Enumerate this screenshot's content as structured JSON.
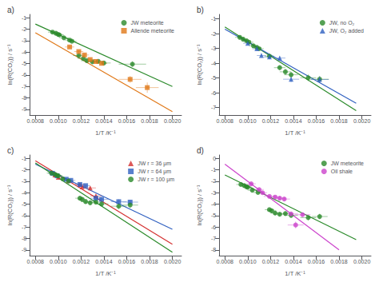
{
  "chart_data": [
    {
      "type": "scatter",
      "title": "a)",
      "xlabel": "1/T /K⁻¹",
      "ylabel": "ln(R(CO₂)) / s⁻¹",
      "xlim": [
        0.00075,
        0.00208
      ],
      "xticks": [
        0.0008,
        {
          "value": 0.001,
          "label": "0.0010"
        },
        0.0012,
        0.0014,
        0.0016,
        0.0018,
        {
          "value": 0.002,
          "label": "0.0020"
        }
      ],
      "ylim": [
        -9.5,
        -0.7
      ],
      "yticks": [
        -9,
        -8,
        -7,
        -6,
        -5,
        -4,
        -3,
        -2,
        -1
      ],
      "grid": false,
      "legend": "upper right",
      "series": [
        {
          "type": "scatter",
          "name": "JW meteorite",
          "color": "#2a8a2a",
          "marker": "circle",
          "x": [
            0.00095,
            0.00098,
            0.001,
            0.00101,
            0.00105,
            0.0011,
            0.00112,
            0.00118,
            0.00122,
            0.00125,
            0.0013,
            0.00135,
            0.0014,
            0.00165
          ],
          "values": [
            -2.25,
            -2.35,
            -2.45,
            -2.5,
            -2.75,
            -2.95,
            -3.05,
            -4.3,
            -4.55,
            -4.75,
            -4.85,
            -4.8,
            -4.95,
            -5.05
          ],
          "xerr": [
            4e-05,
            4e-05,
            4e-05,
            4e-05,
            4e-05,
            4e-05,
            4e-05,
            5e-05,
            5e-05,
            5e-05,
            5e-05,
            5e-05,
            6e-05,
            0.00012
          ],
          "yerr": [
            0.1,
            0.1,
            0.1,
            0.1,
            0.1,
            0.1,
            0.1,
            0.15,
            0.15,
            0.15,
            0.15,
            0.15,
            0.2,
            0.25
          ]
        },
        {
          "type": "scatter",
          "name": "Allende meteorite",
          "color": "#e07818",
          "marker": "square",
          "x": [
            0.0011,
            0.00118,
            0.00123,
            0.00128,
            0.00133,
            0.00138,
            0.00163,
            0.00178
          ],
          "values": [
            -3.55,
            -3.95,
            -4.25,
            -4.65,
            -4.82,
            -4.98,
            -6.38,
            -7.1
          ],
          "xerr": [
            4e-05,
            4e-05,
            4e-05,
            5e-05,
            5e-05,
            5e-05,
            0.0001,
            0.0001
          ],
          "yerr": [
            0.1,
            0.1,
            0.12,
            0.15,
            0.15,
            0.18,
            0.3,
            0.45
          ]
        },
        {
          "type": "line",
          "color": "#2a8a2a",
          "x": [
            0.0008,
            0.002
          ],
          "values": [
            -1.55,
            -7.0
          ]
        },
        {
          "type": "line",
          "color": "#e07818",
          "x": [
            0.0008,
            0.002
          ],
          "values": [
            -2.3,
            -9.2
          ]
        }
      ]
    },
    {
      "type": "scatter",
      "title": "b)",
      "xlabel": "1/T /K⁻¹",
      "ylabel": "ln(R(CO₂)) / s⁻¹",
      "xlim": [
        0.00075,
        0.00208
      ],
      "xticks": [
        0.0008,
        {
          "value": 0.001,
          "label": "0.0010"
        },
        0.0012,
        0.0014,
        0.0016,
        0.0018,
        {
          "value": 0.002,
          "label": "0.0020"
        }
      ],
      "ylim": [
        -7.5,
        -0.7
      ],
      "yticks": [
        -7,
        -6,
        -5,
        -4,
        -3,
        -2,
        -1
      ],
      "grid": false,
      "legend": "upper right",
      "series": [
        {
          "type": "scatter",
          "name": "JW, no O₂",
          "color": "#2a8a2a",
          "marker": "circle",
          "x": [
            0.00093,
            0.00096,
            0.00099,
            0.00101,
            0.00105,
            0.00108,
            0.0011,
            0.00119,
            0.00128,
            0.00133,
            0.00138,
            0.00153,
            0.00163
          ],
          "values": [
            -2.25,
            -2.38,
            -2.48,
            -2.58,
            -2.82,
            -2.93,
            -3.02,
            -3.52,
            -4.3,
            -4.58,
            -4.78,
            -4.98,
            -5.08
          ],
          "xerr": [
            4e-05,
            4e-05,
            4e-05,
            4e-05,
            4e-05,
            4e-05,
            4e-05,
            4e-05,
            5e-05,
            5e-05,
            6e-05,
            7e-05,
            8e-05
          ],
          "yerr": [
            0.1,
            0.1,
            0.1,
            0.1,
            0.1,
            0.1,
            0.1,
            0.12,
            0.18,
            0.2,
            0.2,
            0.22,
            0.22
          ]
        },
        {
          "type": "scatter",
          "name": "JW, O₂ added",
          "color": "#3060c0",
          "marker": "triangle",
          "x": [
            0.001,
            0.00108,
            0.00112,
            0.00119,
            0.00128,
            0.00138,
            0.00163
          ],
          "values": [
            -2.65,
            -3.02,
            -3.48,
            -3.58,
            -3.65,
            -5.08,
            -5.1
          ],
          "xerr": [
            4e-05,
            4e-05,
            4e-05,
            5e-05,
            5e-05,
            7e-05,
            8e-05
          ],
          "yerr": [
            0.1,
            0.1,
            0.15,
            0.15,
            0.15,
            0.2,
            0.22
          ]
        },
        {
          "type": "line",
          "color": "#2a8a2a",
          "x": [
            0.0008,
            0.00195
          ],
          "values": [
            -1.55,
            -7.2
          ]
        },
        {
          "type": "line",
          "color": "#3060c0",
          "x": [
            0.0008,
            0.00195
          ],
          "values": [
            -1.7,
            -6.7
          ]
        }
      ]
    },
    {
      "type": "scatter",
      "title": "c)",
      "xlabel": "1/T /K⁻¹",
      "ylabel": "ln(R(CO₂)) / s⁻¹",
      "xlim": [
        0.00075,
        0.00208
      ],
      "xticks": [
        0.0008,
        {
          "value": 0.001,
          "label": "0.0010"
        },
        0.0012,
        0.0014,
        0.0016,
        0.0018,
        {
          "value": 0.002,
          "label": "0.0020"
        }
      ],
      "ylim": [
        -9.5,
        -0.7
      ],
      "yticks": [
        -9,
        -8,
        -7,
        -6,
        -5,
        -4,
        -3,
        -2,
        -1
      ],
      "grid": false,
      "legend": "upper right",
      "series": [
        {
          "type": "scatter",
          "name": "JW r = 36 μm",
          "color": "#d43030",
          "marker": "triangle",
          "x": [
            0.00097,
            0.001,
            0.00109,
            0.00119,
            0.00121,
            0.00128,
            0.00133
          ],
          "values": [
            -2.45,
            -2.65,
            -2.95,
            -3.28,
            -3.48,
            -3.58,
            -4.28
          ],
          "xerr": [
            4e-05,
            4e-05,
            4e-05,
            4e-05,
            4e-05,
            5e-05,
            5e-05
          ],
          "yerr": [
            0.1,
            0.1,
            0.1,
            0.1,
            0.14,
            0.14,
            0.18
          ]
        },
        {
          "type": "scatter",
          "name": "JW r = 64 μm",
          "color": "#3060c0",
          "marker": "square",
          "x": [
            0.00095,
            0.00099,
            0.00107,
            0.00111,
            0.00119,
            0.00124,
            0.00133,
            0.00138,
            0.00153,
            0.00163
          ],
          "values": [
            -2.3,
            -2.52,
            -2.82,
            -2.92,
            -3.28,
            -3.38,
            -4.48,
            -4.58,
            -4.78,
            -4.82
          ],
          "xerr": [
            4e-05,
            4e-05,
            4e-05,
            4e-05,
            4e-05,
            4e-05,
            5e-05,
            6e-05,
            7e-05,
            7e-05
          ],
          "yerr": [
            0.1,
            0.1,
            0.1,
            0.1,
            0.1,
            0.1,
            0.2,
            0.2,
            0.2,
            0.2
          ]
        },
        {
          "type": "scatter",
          "name": "JW r = 100 μm",
          "color": "#2a8a2a",
          "marker": "circle",
          "x": [
            0.00094,
            0.00097,
            0.00099,
            0.001,
            0.00104,
            0.00109,
            0.00119,
            0.00121,
            0.00124,
            0.00128,
            0.00133,
            0.00138,
            0.00153,
            0.00163
          ],
          "values": [
            -2.28,
            -2.38,
            -2.48,
            -2.52,
            -2.78,
            -2.98,
            -4.48,
            -4.58,
            -4.78,
            -4.88,
            -4.82,
            -4.98,
            -5.18,
            -5.08
          ],
          "xerr": [
            4e-05,
            4e-05,
            4e-05,
            4e-05,
            4e-05,
            4e-05,
            4e-05,
            4e-05,
            4e-05,
            5e-05,
            5e-05,
            6e-05,
            7e-05,
            7e-05
          ],
          "yerr": [
            0.1,
            0.1,
            0.1,
            0.1,
            0.1,
            0.1,
            0.2,
            0.2,
            0.2,
            0.2,
            0.2,
            0.2,
            0.25,
            0.25
          ]
        },
        {
          "type": "line",
          "color": "#d43030",
          "x": [
            0.0008,
            0.002
          ],
          "values": [
            -1.2,
            -8.5
          ]
        },
        {
          "type": "line",
          "color": "#3060c0",
          "x": [
            0.0008,
            0.002
          ],
          "values": [
            -1.5,
            -7.2
          ]
        },
        {
          "type": "line",
          "color": "#2a8a2a",
          "x": [
            0.0008,
            0.002
          ],
          "values": [
            -1.4,
            -9.2
          ]
        }
      ]
    },
    {
      "type": "scatter",
      "title": "d)",
      "xlabel": "1/T /K⁻¹",
      "ylabel": "ln(R(CO₂)) / s⁻¹",
      "xlim": [
        0.00075,
        0.00208
      ],
      "xticks": [
        0.0008,
        {
          "value": 0.001,
          "label": "0.0010"
        },
        0.0012,
        0.0014,
        0.0016,
        0.0018,
        {
          "value": 0.002,
          "label": "0.0020"
        }
      ],
      "ylim": [
        -8.5,
        0.3
      ],
      "yticks": [
        -8,
        -7,
        -6,
        -5,
        -4,
        -3,
        -2,
        -1,
        0
      ],
      "grid": false,
      "legend": "upper right",
      "series": [
        {
          "type": "scatter",
          "name": "JW meteorite",
          "color": "#2a8a2a",
          "marker": "circle",
          "x": [
            0.00094,
            0.00097,
            0.00099,
            0.001,
            0.00104,
            0.00109,
            0.00119,
            0.00121,
            0.00124,
            0.00128,
            0.00133,
            0.00138,
            0.00153,
            0.00163
          ],
          "values": [
            -2.28,
            -2.38,
            -2.48,
            -2.52,
            -2.78,
            -2.98,
            -4.48,
            -4.58,
            -4.78,
            -4.88,
            -4.82,
            -4.98,
            -5.18,
            -5.08
          ],
          "xerr": [
            4e-05,
            4e-05,
            4e-05,
            4e-05,
            4e-05,
            4e-05,
            4e-05,
            4e-05,
            4e-05,
            5e-05,
            5e-05,
            6e-05,
            7e-05,
            7e-05
          ],
          "yerr": [
            0.1,
            0.1,
            0.1,
            0.1,
            0.1,
            0.1,
            0.2,
            0.2,
            0.2,
            0.2,
            0.2,
            0.2,
            0.25,
            0.25
          ]
        },
        {
          "type": "scatter",
          "name": "Oil shale",
          "color": "#cc44cc",
          "marker": "circle",
          "x": [
            0.00103,
            0.0011,
            0.00113,
            0.00119,
            0.00124,
            0.00128,
            0.00132,
            0.00138,
            0.00142,
            0.00148
          ],
          "values": [
            -2.22,
            -2.72,
            -3.0,
            -3.32,
            -3.38,
            -3.48,
            -3.55,
            -4.85,
            -5.82,
            -4.92
          ],
          "xerr": [
            4e-05,
            4e-05,
            4e-05,
            5e-05,
            5e-05,
            5e-05,
            5e-05,
            6e-05,
            7e-05,
            7e-05
          ],
          "yerr": [
            0.1,
            0.1,
            0.1,
            0.12,
            0.12,
            0.12,
            0.12,
            0.2,
            0.3,
            0.2
          ]
        },
        {
          "type": "line",
          "color": "#2a8a2a",
          "x": [
            0.0008,
            0.00195
          ],
          "values": [
            -1.45,
            -7.1
          ]
        },
        {
          "type": "line",
          "color": "#cc44cc",
          "x": [
            0.0008,
            0.0018
          ],
          "values": [
            -0.5,
            -8.0
          ]
        }
      ]
    }
  ]
}
